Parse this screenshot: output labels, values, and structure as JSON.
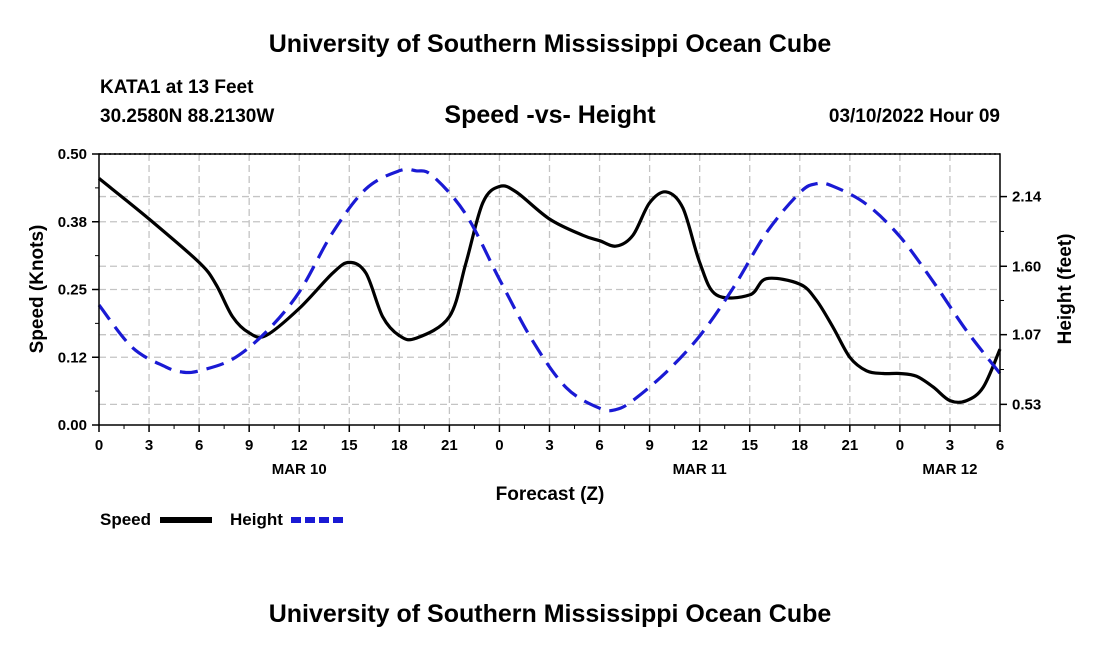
{
  "page": {
    "title_top": "University of Southern Mississippi Ocean Cube",
    "title_bottom": "University of Southern Mississippi Ocean Cube",
    "station": "KATA1 at 13 Feet",
    "coords": "30.2580N  88.2130W",
    "datetime": "03/10/2022 Hour 09"
  },
  "chart_data": {
    "type": "line",
    "title": "Speed -vs- Height",
    "xlabel": "Forecast (Z)",
    "ylabel": "Speed (Knots)",
    "y2label": "Height (feet)",
    "x_range": [
      0,
      54
    ],
    "ylim": [
      0,
      0.5
    ],
    "y2lim": [
      0.37,
      2.47
    ],
    "x_ticks": [
      0,
      3,
      6,
      9,
      12,
      15,
      18,
      21,
      24,
      27,
      30,
      33,
      36,
      39,
      42,
      45,
      48,
      51,
      54
    ],
    "x_tick_labels": [
      "0",
      "3",
      "6",
      "9",
      "12",
      "15",
      "18",
      "21",
      "0",
      "3",
      "6",
      "9",
      "12",
      "15",
      "18",
      "21",
      "0",
      "3",
      "6"
    ],
    "y_ticks": [
      0,
      0.125,
      0.25,
      0.375,
      0.5
    ],
    "y_tick_labels": [
      "0.00",
      "0.12",
      "0.25",
      "0.38",
      "0.50"
    ],
    "y2_ticks": [
      0.53,
      1.07,
      1.6,
      2.14
    ],
    "y2_tick_labels": [
      "0.53",
      "1.07",
      "1.60",
      "2.14"
    ],
    "date_labels": [
      {
        "x": 12,
        "label": "MAR 10"
      },
      {
        "x": 36,
        "label": "MAR 11"
      },
      {
        "x": 51,
        "label": "MAR 12"
      }
    ],
    "grid": true,
    "legend": [
      {
        "name": "Speed",
        "color": "#000000",
        "dash": "solid"
      },
      {
        "name": "Height",
        "color": "#1a1ad4",
        "dash": "dashed"
      }
    ],
    "series": [
      {
        "name": "Speed",
        "axis": "left",
        "color": "#000000",
        "x": [
          0,
          3,
          6,
          7,
          8,
          9,
          10,
          12,
          14,
          15,
          16,
          17,
          18,
          19,
          21,
          22,
          23,
          24,
          25,
          27,
          29,
          30,
          31,
          32,
          33,
          34,
          35,
          36,
          37,
          39,
          40,
          42,
          43,
          44,
          45,
          46,
          47,
          48,
          49,
          50,
          51,
          52,
          53,
          54
        ],
        "values": [
          0.455,
          0.38,
          0.3,
          0.26,
          0.2,
          0.17,
          0.165,
          0.215,
          0.28,
          0.3,
          0.28,
          0.2,
          0.165,
          0.16,
          0.2,
          0.3,
          0.41,
          0.44,
          0.43,
          0.38,
          0.35,
          0.34,
          0.33,
          0.35,
          0.41,
          0.43,
          0.4,
          0.3,
          0.24,
          0.24,
          0.27,
          0.26,
          0.23,
          0.18,
          0.125,
          0.1,
          0.095,
          0.095,
          0.09,
          0.07,
          0.045,
          0.045,
          0.07,
          0.14
        ]
      },
      {
        "name": "Height",
        "axis": "right",
        "color": "#1a1ad4",
        "x": [
          0,
          2,
          4,
          5,
          6,
          8,
          10,
          12,
          14,
          16,
          18,
          19,
          20,
          22,
          24,
          26,
          28,
          30,
          31,
          32,
          34,
          36,
          38,
          40,
          42,
          43,
          44,
          46,
          48,
          50,
          52,
          54
        ],
        "values": [
          1.3,
          0.97,
          0.82,
          0.78,
          0.79,
          0.88,
          1.09,
          1.4,
          1.86,
          2.2,
          2.34,
          2.34,
          2.3,
          2.0,
          1.5,
          1.02,
          0.66,
          0.5,
          0.49,
          0.56,
          0.78,
          1.06,
          1.43,
          1.86,
          2.17,
          2.24,
          2.22,
          2.08,
          1.83,
          1.48,
          1.1,
          0.77
        ]
      }
    ]
  }
}
